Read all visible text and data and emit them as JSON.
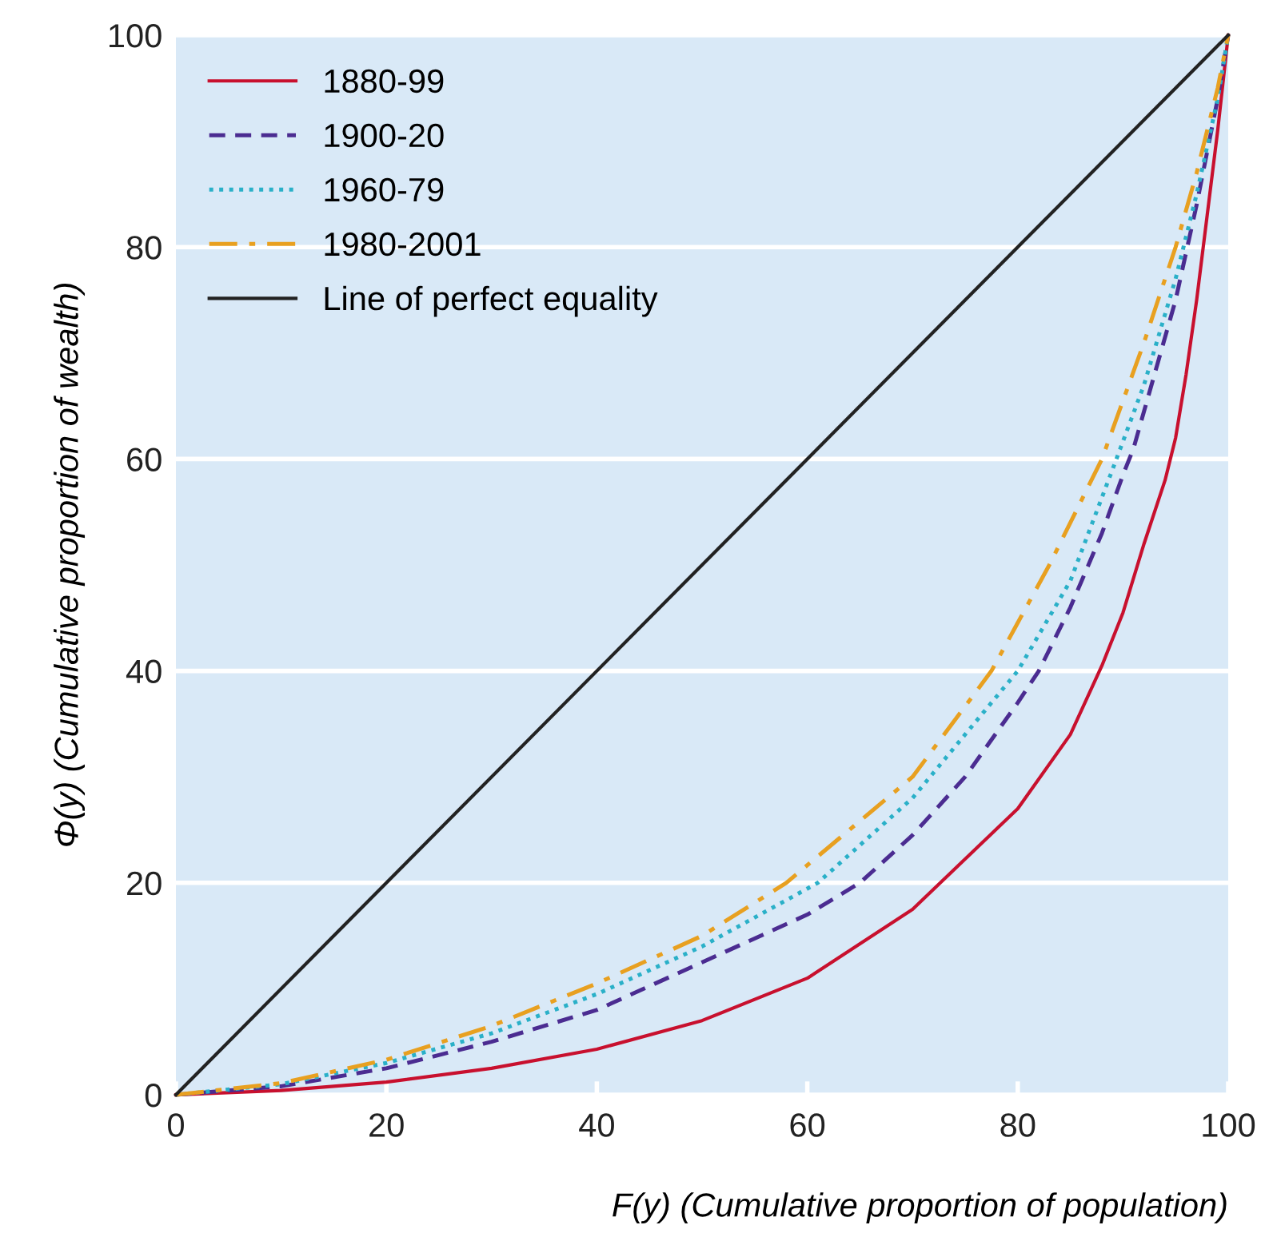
{
  "chart_data": {
    "type": "line",
    "xlabel": "F(y) (Cumulative proportion of population)",
    "ylabel": "Φ(y) (Cumulative proportion of wealth)",
    "xlim": [
      0,
      100
    ],
    "ylim": [
      0,
      100
    ],
    "xticks": [
      0,
      20,
      40,
      60,
      80,
      100
    ],
    "yticks": [
      0,
      20,
      40,
      60,
      80,
      100
    ],
    "grid": "y",
    "legend": "top left",
    "series": [
      {
        "name": "1880-99",
        "color": "#c8102e",
        "line_style": "solid",
        "x": [
          0,
          10,
          20,
          30,
          40,
          50,
          60,
          70,
          80,
          85,
          88,
          90,
          92,
          94,
          95,
          96,
          97,
          98,
          99,
          100
        ],
        "values": [
          0,
          0.4,
          1.2,
          2.5,
          4.3,
          7,
          11,
          17.5,
          27,
          34,
          40.5,
          45.5,
          52,
          58,
          62,
          68,
          75,
          83,
          91,
          100
        ]
      },
      {
        "name": "1900-20",
        "color": "#4b2c91",
        "line_style": "dashed",
        "x": [
          0,
          10,
          20,
          30,
          40,
          50,
          60,
          65,
          70,
          75,
          80,
          82,
          85,
          88,
          90,
          91,
          93,
          95,
          97,
          99,
          100
        ],
        "values": [
          0,
          0.8,
          2.5,
          5,
          8,
          12.5,
          17,
          20,
          24.5,
          30,
          37,
          40,
          46,
          53,
          58.5,
          61,
          68,
          75,
          84,
          94,
          100
        ]
      },
      {
        "name": "1960-79",
        "color": "#2ab0c8",
        "line_style": "dotted",
        "x": [
          0,
          10,
          20,
          30,
          40,
          50,
          61,
          70,
          80,
          85,
          89,
          92,
          95,
          97,
          99,
          100
        ],
        "values": [
          0,
          1,
          3,
          5.8,
          9.5,
          14,
          20,
          28,
          40,
          48.5,
          59,
          67,
          77,
          85,
          94,
          100
        ]
      },
      {
        "name": "1980-2001",
        "color": "#e8a020",
        "line_style": "dashdot",
        "x": [
          0,
          10,
          20,
          30,
          40,
          50,
          58,
          70,
          77.5,
          83,
          88,
          92,
          95,
          97,
          99,
          100
        ],
        "values": [
          0,
          1.1,
          3.3,
          6.5,
          10.5,
          15,
          20,
          30,
          40,
          50,
          60,
          71,
          80,
          87,
          95,
          100
        ]
      },
      {
        "name": "Line of perfect equality",
        "color": "#222222",
        "line_style": "solid",
        "x": [
          0,
          100
        ],
        "values": [
          0,
          100
        ]
      }
    ]
  }
}
